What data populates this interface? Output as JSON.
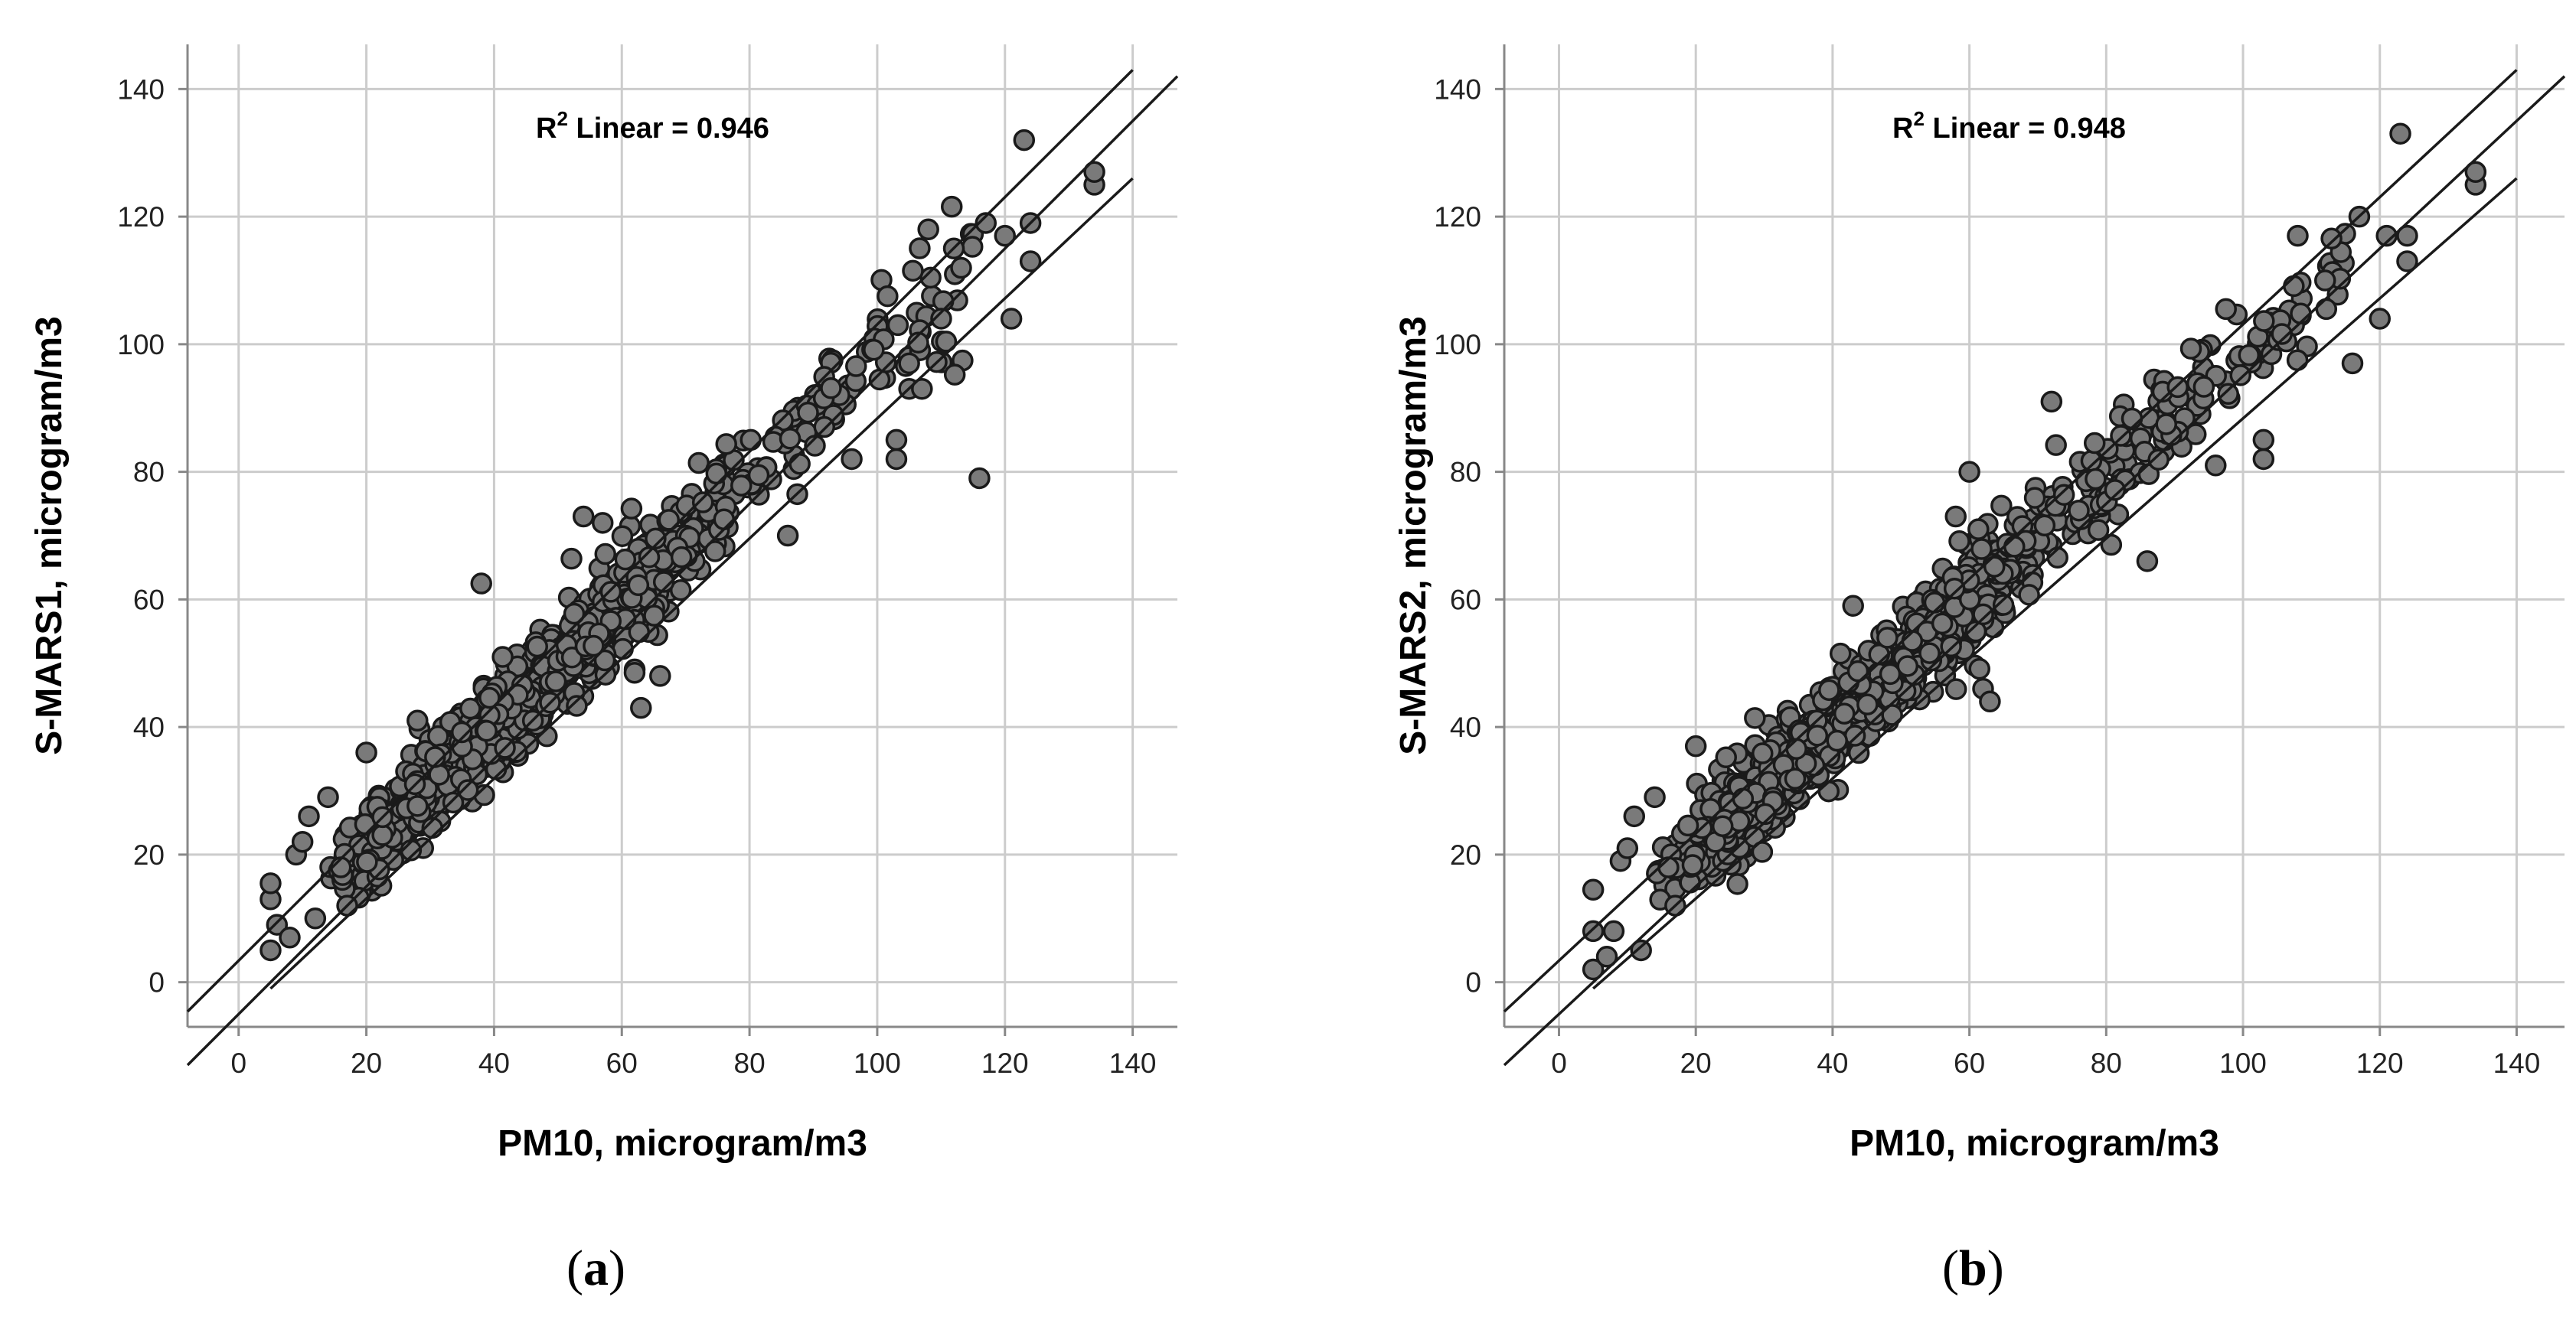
{
  "chart_data": [
    {
      "type": "scatter",
      "panel_label": "a",
      "xlabel": "PM10, microgram/m3",
      "ylabel": "S-MARS1, microgram/m3",
      "annotation": {
        "r2_prefix": "R",
        "r2_sup": "2",
        "r2_label": " Linear = 0.946"
      },
      "xlim": [
        -8,
        147
      ],
      "ylim": [
        -7,
        147
      ],
      "xticks": [
        0,
        20,
        40,
        60,
        80,
        100,
        120,
        140
      ],
      "yticks": [
        0,
        20,
        40,
        60,
        80,
        100,
        120,
        140
      ],
      "grid": true,
      "fit_lines": [
        {
          "x": [
            -8,
            140
          ],
          "y": [
            -4.6,
            143
          ]
        },
        {
          "x": [
            -8,
            147
          ],
          "y": [
            -13.0,
            142
          ]
        },
        {
          "x": [
            5,
            140
          ],
          "y": [
            -1.0,
            126
          ]
        }
      ],
      "outliers": [
        [
          5,
          5
        ],
        [
          5,
          13
        ],
        [
          5,
          15.5
        ],
        [
          6,
          9
        ],
        [
          8,
          7
        ],
        [
          9,
          20
        ],
        [
          10,
          22
        ],
        [
          11,
          26
        ],
        [
          12,
          10
        ],
        [
          14,
          29
        ],
        [
          16,
          18
        ],
        [
          17,
          12
        ],
        [
          20,
          36
        ],
        [
          28,
          41
        ],
        [
          38,
          62.5
        ],
        [
          54,
          73
        ],
        [
          57,
          72
        ],
        [
          62,
          48.5
        ],
        [
          63,
          43
        ],
        [
          66,
          48
        ],
        [
          86,
          70
        ],
        [
          96,
          82
        ],
        [
          103,
          82
        ],
        [
          103,
          85
        ],
        [
          105,
          93
        ],
        [
          105,
          97
        ],
        [
          107,
          93
        ],
        [
          108,
          118
        ],
        [
          112,
          115
        ],
        [
          116,
          79
        ],
        [
          117,
          119
        ],
        [
          120,
          117
        ],
        [
          121,
          104
        ],
        [
          123,
          132
        ],
        [
          124,
          119
        ],
        [
          124,
          113
        ],
        [
          134,
          125
        ],
        [
          134,
          127
        ]
      ],
      "point_count": 950,
      "colors": {
        "marker_fill": "#7a7a7a",
        "marker_edge": "#1a1a1a",
        "grid": "#cccccc",
        "frame": "#888888"
      }
    },
    {
      "type": "scatter",
      "panel_label": "b",
      "xlabel": "PM10, microgram/m3",
      "ylabel": "S-MARS2, microgram/m3",
      "annotation": {
        "r2_prefix": "R",
        "r2_sup": "2",
        "r2_label": " Linear = 0.948"
      },
      "xlim": [
        -8,
        147
      ],
      "ylim": [
        -7,
        147
      ],
      "xticks": [
        0,
        20,
        40,
        60,
        80,
        100,
        120,
        140
      ],
      "yticks": [
        0,
        20,
        40,
        60,
        80,
        100,
        120,
        140
      ],
      "grid": true,
      "fit_lines": [
        {
          "x": [
            -8,
            140
          ],
          "y": [
            -4.6,
            143
          ]
        },
        {
          "x": [
            -8,
            147
          ],
          "y": [
            -13.0,
            142
          ]
        },
        {
          "x": [
            5,
            140
          ],
          "y": [
            -1.0,
            126
          ]
        }
      ],
      "outliers": [
        [
          5,
          2
        ],
        [
          5,
          8
        ],
        [
          5,
          14.5
        ],
        [
          7,
          4
        ],
        [
          8,
          8
        ],
        [
          9,
          19
        ],
        [
          10,
          21
        ],
        [
          11,
          26
        ],
        [
          12,
          5
        ],
        [
          14,
          29
        ],
        [
          16,
          18
        ],
        [
          17,
          12
        ],
        [
          20,
          37
        ],
        [
          43,
          59
        ],
        [
          48,
          54
        ],
        [
          58,
          73
        ],
        [
          60,
          80
        ],
        [
          62,
          46
        ],
        [
          63,
          44
        ],
        [
          72,
          91
        ],
        [
          86,
          66
        ],
        [
          96,
          81
        ],
        [
          103,
          82
        ],
        [
          103,
          85
        ],
        [
          108,
          117
        ],
        [
          112,
          110
        ],
        [
          116,
          97
        ],
        [
          117,
          120
        ],
        [
          120,
          104
        ],
        [
          121,
          117
        ],
        [
          123,
          133
        ],
        [
          124,
          117
        ],
        [
          124,
          113
        ],
        [
          134,
          125
        ],
        [
          134,
          127
        ]
      ],
      "point_count": 950,
      "colors": {
        "marker_fill": "#7a7a7a",
        "marker_edge": "#1a1a1a",
        "grid": "#cccccc",
        "frame": "#888888"
      }
    }
  ]
}
